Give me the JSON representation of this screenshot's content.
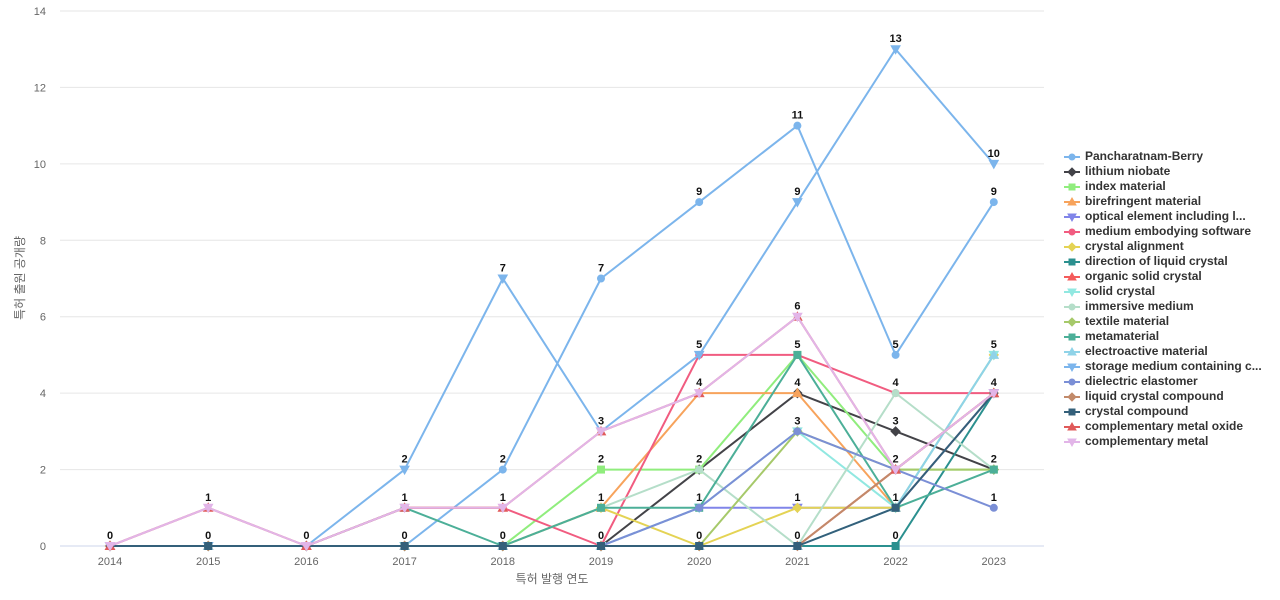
{
  "chart_data": {
    "type": "line",
    "xlabel": "특허 발행 연도",
    "ylabel": "특허 출원 공개량",
    "categories": [
      "2014",
      "2015",
      "2016",
      "2017",
      "2018",
      "2019",
      "2020",
      "2021",
      "2022",
      "2023"
    ],
    "ylim": [
      0,
      14
    ],
    "yticks": [
      0,
      2,
      4,
      6,
      8,
      10,
      12,
      14
    ],
    "grid": true,
    "legend_position": "right",
    "series": [
      {
        "name": "Pancharatnam-Berry",
        "color": "#7cb5ec",
        "marker": "circle",
        "values": [
          0,
          0,
          0,
          0,
          2,
          7,
          9,
          11,
          5,
          9
        ]
      },
      {
        "name": "lithium niobate",
        "color": "#434348",
        "marker": "diamond",
        "values": [
          0,
          0,
          0,
          0,
          0,
          0,
          2,
          4,
          3,
          2
        ]
      },
      {
        "name": "index material",
        "color": "#90ed7d",
        "marker": "square",
        "values": [
          0,
          0,
          0,
          0,
          0,
          2,
          2,
          5,
          2,
          2
        ]
      },
      {
        "name": "birefringent material",
        "color": "#f7a35c",
        "marker": "triangle",
        "values": [
          0,
          0,
          0,
          0,
          0,
          1,
          4,
          4,
          1,
          4
        ]
      },
      {
        "name": "optical element including l...",
        "color": "#8085e9",
        "marker": "triangle-down",
        "values": [
          0,
          0,
          0,
          0,
          0,
          0,
          1,
          1,
          1,
          4
        ]
      },
      {
        "name": "medium embodying software",
        "color": "#f15c80",
        "marker": "circle",
        "values": [
          0,
          0,
          0,
          1,
          1,
          0,
          5,
          5,
          4,
          4
        ]
      },
      {
        "name": "crystal alignment",
        "color": "#e4d354",
        "marker": "diamond",
        "values": [
          0,
          0,
          0,
          0,
          0,
          1,
          0,
          1,
          1,
          5
        ]
      },
      {
        "name": "direction of liquid crystal",
        "color": "#2b908f",
        "marker": "square",
        "values": [
          0,
          0,
          0,
          0,
          0,
          0,
          0,
          0,
          0,
          4
        ]
      },
      {
        "name": "organic solid crystal",
        "color": "#f45b5b",
        "marker": "triangle",
        "values": [
          0,
          0,
          0,
          0,
          0,
          0,
          0,
          0,
          2,
          4
        ]
      },
      {
        "name": "solid crystal",
        "color": "#91e8e1",
        "marker": "triangle-down",
        "values": [
          0,
          0,
          0,
          0,
          0,
          0,
          1,
          3,
          1,
          5
        ]
      },
      {
        "name": "immersive medium",
        "color": "#b5dec9",
        "marker": "circle",
        "values": [
          0,
          0,
          0,
          0,
          0,
          1,
          2,
          0,
          4,
          2
        ]
      },
      {
        "name": "textile material",
        "color": "#a6c96a",
        "marker": "diamond",
        "values": [
          0,
          0,
          0,
          0,
          0,
          0,
          0,
          3,
          2,
          2
        ]
      },
      {
        "name": "metamaterial",
        "color": "#4caf98",
        "marker": "square",
        "values": [
          0,
          0,
          0,
          1,
          0,
          1,
          1,
          5,
          1,
          2
        ]
      },
      {
        "name": "electroactive material",
        "color": "#8fd3e8",
        "marker": "triangle",
        "values": [
          0,
          0,
          0,
          0,
          0,
          0,
          0,
          0,
          1,
          5
        ]
      },
      {
        "name": "storage medium containing c...",
        "color": "#7cb5ec",
        "marker": "triangle-down",
        "values": [
          0,
          0,
          0,
          2,
          7,
          3,
          5,
          9,
          13,
          10
        ]
      },
      {
        "name": "dielectric elastomer",
        "color": "#7b8fd6",
        "marker": "circle",
        "values": [
          0,
          0,
          0,
          0,
          0,
          0,
          1,
          3,
          2,
          1
        ]
      },
      {
        "name": "liquid crystal compound",
        "color": "#c28a6a",
        "marker": "diamond",
        "values": [
          0,
          0,
          0,
          0,
          0,
          0,
          0,
          0,
          2,
          4
        ]
      },
      {
        "name": "crystal compound",
        "color": "#34607a",
        "marker": "square",
        "values": [
          0,
          0,
          0,
          0,
          0,
          0,
          0,
          0,
          1,
          4
        ]
      },
      {
        "name": "complementary metal oxide",
        "color": "#e05a5a",
        "marker": "triangle",
        "values": [
          0,
          1,
          0,
          1,
          1,
          3,
          4,
          6,
          2,
          4
        ]
      },
      {
        "name": "complementary metal",
        "color": "#e2b5e8",
        "marker": "triangle-down",
        "values": [
          0,
          1,
          0,
          1,
          1,
          3,
          4,
          6,
          2,
          4
        ]
      }
    ],
    "data_labels": [
      {
        "x": "2014",
        "y": 0
      },
      {
        "x": "2015",
        "y": 1
      },
      {
        "x": "2015",
        "y": 0
      },
      {
        "x": "2016",
        "y": 0
      },
      {
        "x": "2017",
        "y": 2
      },
      {
        "x": "2017",
        "y": 1
      },
      {
        "x": "2017",
        "y": 0
      },
      {
        "x": "2018",
        "y": 7
      },
      {
        "x": "2018",
        "y": 2
      },
      {
        "x": "2018",
        "y": 1
      },
      {
        "x": "2018",
        "y": 0
      },
      {
        "x": "2019",
        "y": 7
      },
      {
        "x": "2019",
        "y": 3
      },
      {
        "x": "2019",
        "y": 2
      },
      {
        "x": "2019",
        "y": 1
      },
      {
        "x": "2019",
        "y": 0
      },
      {
        "x": "2020",
        "y": 9
      },
      {
        "x": "2020",
        "y": 5
      },
      {
        "x": "2020",
        "y": 4
      },
      {
        "x": "2020",
        "y": 2
      },
      {
        "x": "2020",
        "y": 1
      },
      {
        "x": "2020",
        "y": 0
      },
      {
        "x": "2021",
        "y": 11
      },
      {
        "x": "2021",
        "y": 9
      },
      {
        "x": "2021",
        "y": 6
      },
      {
        "x": "2021",
        "y": 5
      },
      {
        "x": "2021",
        "y": 4
      },
      {
        "x": "2021",
        "y": 3
      },
      {
        "x": "2021",
        "y": 1
      },
      {
        "x": "2021",
        "y": 0
      },
      {
        "x": "2022",
        "y": 13
      },
      {
        "x": "2022",
        "y": 5
      },
      {
        "x": "2022",
        "y": 4
      },
      {
        "x": "2022",
        "y": 3
      },
      {
        "x": "2022",
        "y": 2
      },
      {
        "x": "2022",
        "y": 1
      },
      {
        "x": "2022",
        "y": 0
      },
      {
        "x": "2023",
        "y": 10
      },
      {
        "x": "2023",
        "y": 9
      },
      {
        "x": "2023",
        "y": 5
      },
      {
        "x": "2023",
        "y": 4
      },
      {
        "x": "2023",
        "y": 2
      },
      {
        "x": "2023",
        "y": 1
      }
    ]
  }
}
